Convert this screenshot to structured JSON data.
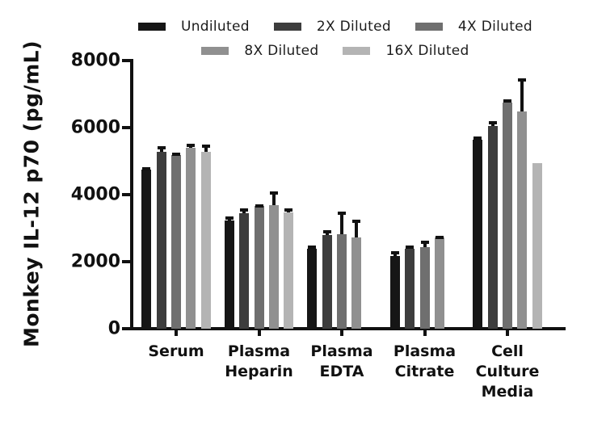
{
  "figure": {
    "background": "#ffffff",
    "text_color": "#111111"
  },
  "legend": {
    "rows": [
      [
        0,
        1,
        2
      ],
      [
        3,
        4
      ]
    ]
  },
  "chart_data": {
    "type": "bar",
    "title": "",
    "xlabel": "",
    "ylabel": "Monkey IL-12 p70 (pg/mL)",
    "ylim": [
      0,
      8000
    ],
    "yticks": [
      0,
      2000,
      4000,
      6000,
      8000
    ],
    "ytick_labels": [
      "0",
      "2000",
      "4000",
      "6000",
      "8000"
    ],
    "grid": false,
    "legend_position": "top",
    "error_bars": "one-sided up, black caps",
    "categories": [
      "Serum",
      "Plasma Heparin",
      "Plasma EDTA",
      "Plasma Citrate",
      "Cell Culture Media"
    ],
    "categories_lines": [
      [
        "Serum"
      ],
      [
        "Plasma",
        "Heparin"
      ],
      [
        "Plasma",
        "EDTA"
      ],
      [
        "Plasma",
        "Citrate"
      ],
      [
        "Cell",
        "Culture",
        "Media"
      ]
    ],
    "series": [
      {
        "name": "Undiluted",
        "color": "#161616",
        "values": [
          4750,
          3240,
          2380,
          2180,
          5650
        ],
        "errors_plus": [
          80,
          100,
          100,
          145,
          85
        ]
      },
      {
        "name": "2X Diluted",
        "color": "#3d3d3d",
        "values": [
          5270,
          3450,
          2800,
          2380,
          6050
        ],
        "errors_plus": [
          185,
          135,
          140,
          95,
          140
        ]
      },
      {
        "name": "4X Diluted",
        "color": "#6f6f6f",
        "values": [
          5190,
          3660,
          2820,
          2430,
          6750
        ],
        "errors_plus": [
          60,
          60,
          680,
          190,
          95
        ]
      },
      {
        "name": "8X Diluted",
        "color": "#909090",
        "values": [
          5400,
          3690,
          2720,
          2720,
          6470
        ],
        "errors_plus": [
          110,
          400,
          545,
          55,
          1010
        ]
      },
      {
        "name": "16X Diluted",
        "color": "#b4b4b4",
        "values": [
          5270,
          3460,
          null,
          null,
          4950
        ],
        "errors_plus": [
          215,
          120,
          null,
          null,
          0
        ]
      }
    ]
  }
}
